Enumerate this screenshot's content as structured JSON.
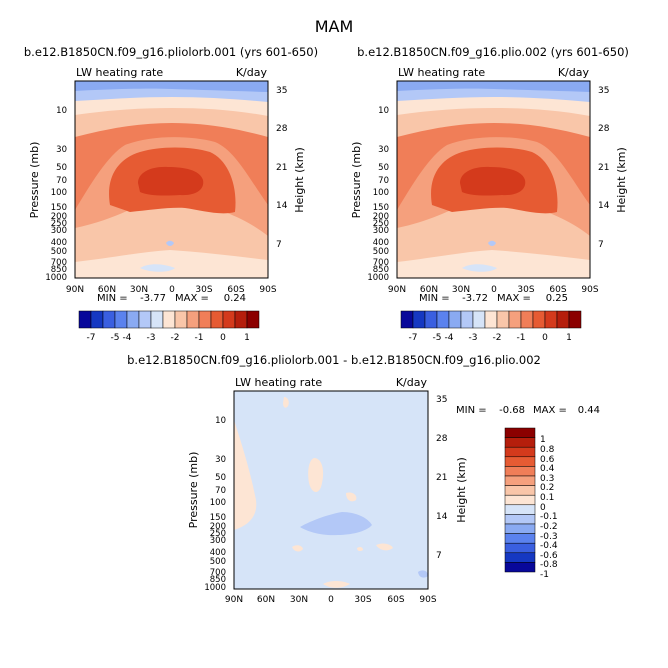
{
  "title": "MAM",
  "chart_data": [
    {
      "type": "heatmap",
      "title": "b.e12.B1850CN.f09_g16.pliolorb.001 (yrs 601-650)",
      "left_label": "LW heating rate",
      "right_label": "K/day",
      "ylabel": "Pressure (mb)",
      "ylabel_right": "Height (km)",
      "x_ticks": [
        "90N",
        "60N",
        "30N",
        "0",
        "30S",
        "60S",
        "90S"
      ],
      "y_ticks": [
        "10",
        "30",
        "50",
        "70",
        "100",
        "150",
        "200",
        "250",
        "300",
        "400",
        "500",
        "700",
        "850",
        "1000"
      ],
      "y2_ticks": [
        "35",
        "28",
        "21",
        "14",
        "7"
      ],
      "min_label": "MIN =",
      "min_value": "-3.77",
      "max_label": "MAX =",
      "max_value": "0.24",
      "colorbar_labels": [
        "-7",
        "-5",
        "-4",
        "-3",
        "-2",
        "-1",
        "0",
        "1"
      ]
    },
    {
      "type": "heatmap",
      "title": "b.e12.B1850CN.f09_g16.plio.002 (yrs 601-650)",
      "left_label": "LW heating rate",
      "right_label": "K/day",
      "ylabel": "Pressure (mb)",
      "ylabel_right": "Height (km)",
      "x_ticks": [
        "90N",
        "60N",
        "30N",
        "0",
        "30S",
        "60S",
        "90S"
      ],
      "y_ticks": [
        "10",
        "30",
        "50",
        "70",
        "100",
        "150",
        "200",
        "250",
        "300",
        "400",
        "500",
        "700",
        "850",
        "1000"
      ],
      "y2_ticks": [
        "35",
        "28",
        "21",
        "14",
        "7"
      ],
      "min_label": "MIN =",
      "min_value": "-3.72",
      "max_label": "MAX =",
      "max_value": "0.25",
      "colorbar_labels": [
        "-7",
        "-5",
        "-4",
        "-3",
        "-2",
        "-1",
        "0",
        "1"
      ]
    },
    {
      "type": "heatmap",
      "title": "b.e12.B1850CN.f09_g16.pliolorb.001 - b.e12.B1850CN.f09_g16.plio.002",
      "left_label": "LW heating rate",
      "right_label": "K/day",
      "ylabel": "Pressure (mb)",
      "ylabel_right": "Height (km)",
      "x_ticks": [
        "90N",
        "60N",
        "30N",
        "0",
        "30S",
        "60S",
        "90S"
      ],
      "y_ticks": [
        "10",
        "30",
        "50",
        "70",
        "100",
        "150",
        "200",
        "250",
        "300",
        "400",
        "500",
        "700",
        "850",
        "1000"
      ],
      "y2_ticks": [
        "35",
        "28",
        "21",
        "14",
        "7"
      ],
      "min_label": "MIN =",
      "min_value": "-0.68",
      "max_label": "MAX =",
      "max_value": "0.44",
      "colorbar_labels": [
        "1",
        "0.8",
        "0.6",
        "0.4",
        "0.3",
        "0.2",
        "0.1",
        "0",
        "-0.1",
        "-0.2",
        "-0.3",
        "-0.4",
        "-0.6",
        "-0.8",
        "-1"
      ]
    }
  ],
  "colors": {
    "top_scale": [
      "#08089a",
      "#1538c2",
      "#3a5fe0",
      "#5b82ee",
      "#8aaaf2",
      "#b3c8f7",
      "#d6e4f8",
      "#fde5d4",
      "#f9c6a9",
      "#f5a07d",
      "#f07e58",
      "#e65b33",
      "#d43a1c",
      "#b51e0c",
      "#8b0000"
    ],
    "diff_scale": [
      "#8b0000",
      "#b51e0c",
      "#d43a1c",
      "#e65b33",
      "#f07e58",
      "#f5a07d",
      "#f9c6a9",
      "#fde5d4",
      "#d6e4f8",
      "#b3c8f7",
      "#8aaaf2",
      "#5b82ee",
      "#3a5fe0",
      "#1538c2",
      "#08089a"
    ]
  }
}
